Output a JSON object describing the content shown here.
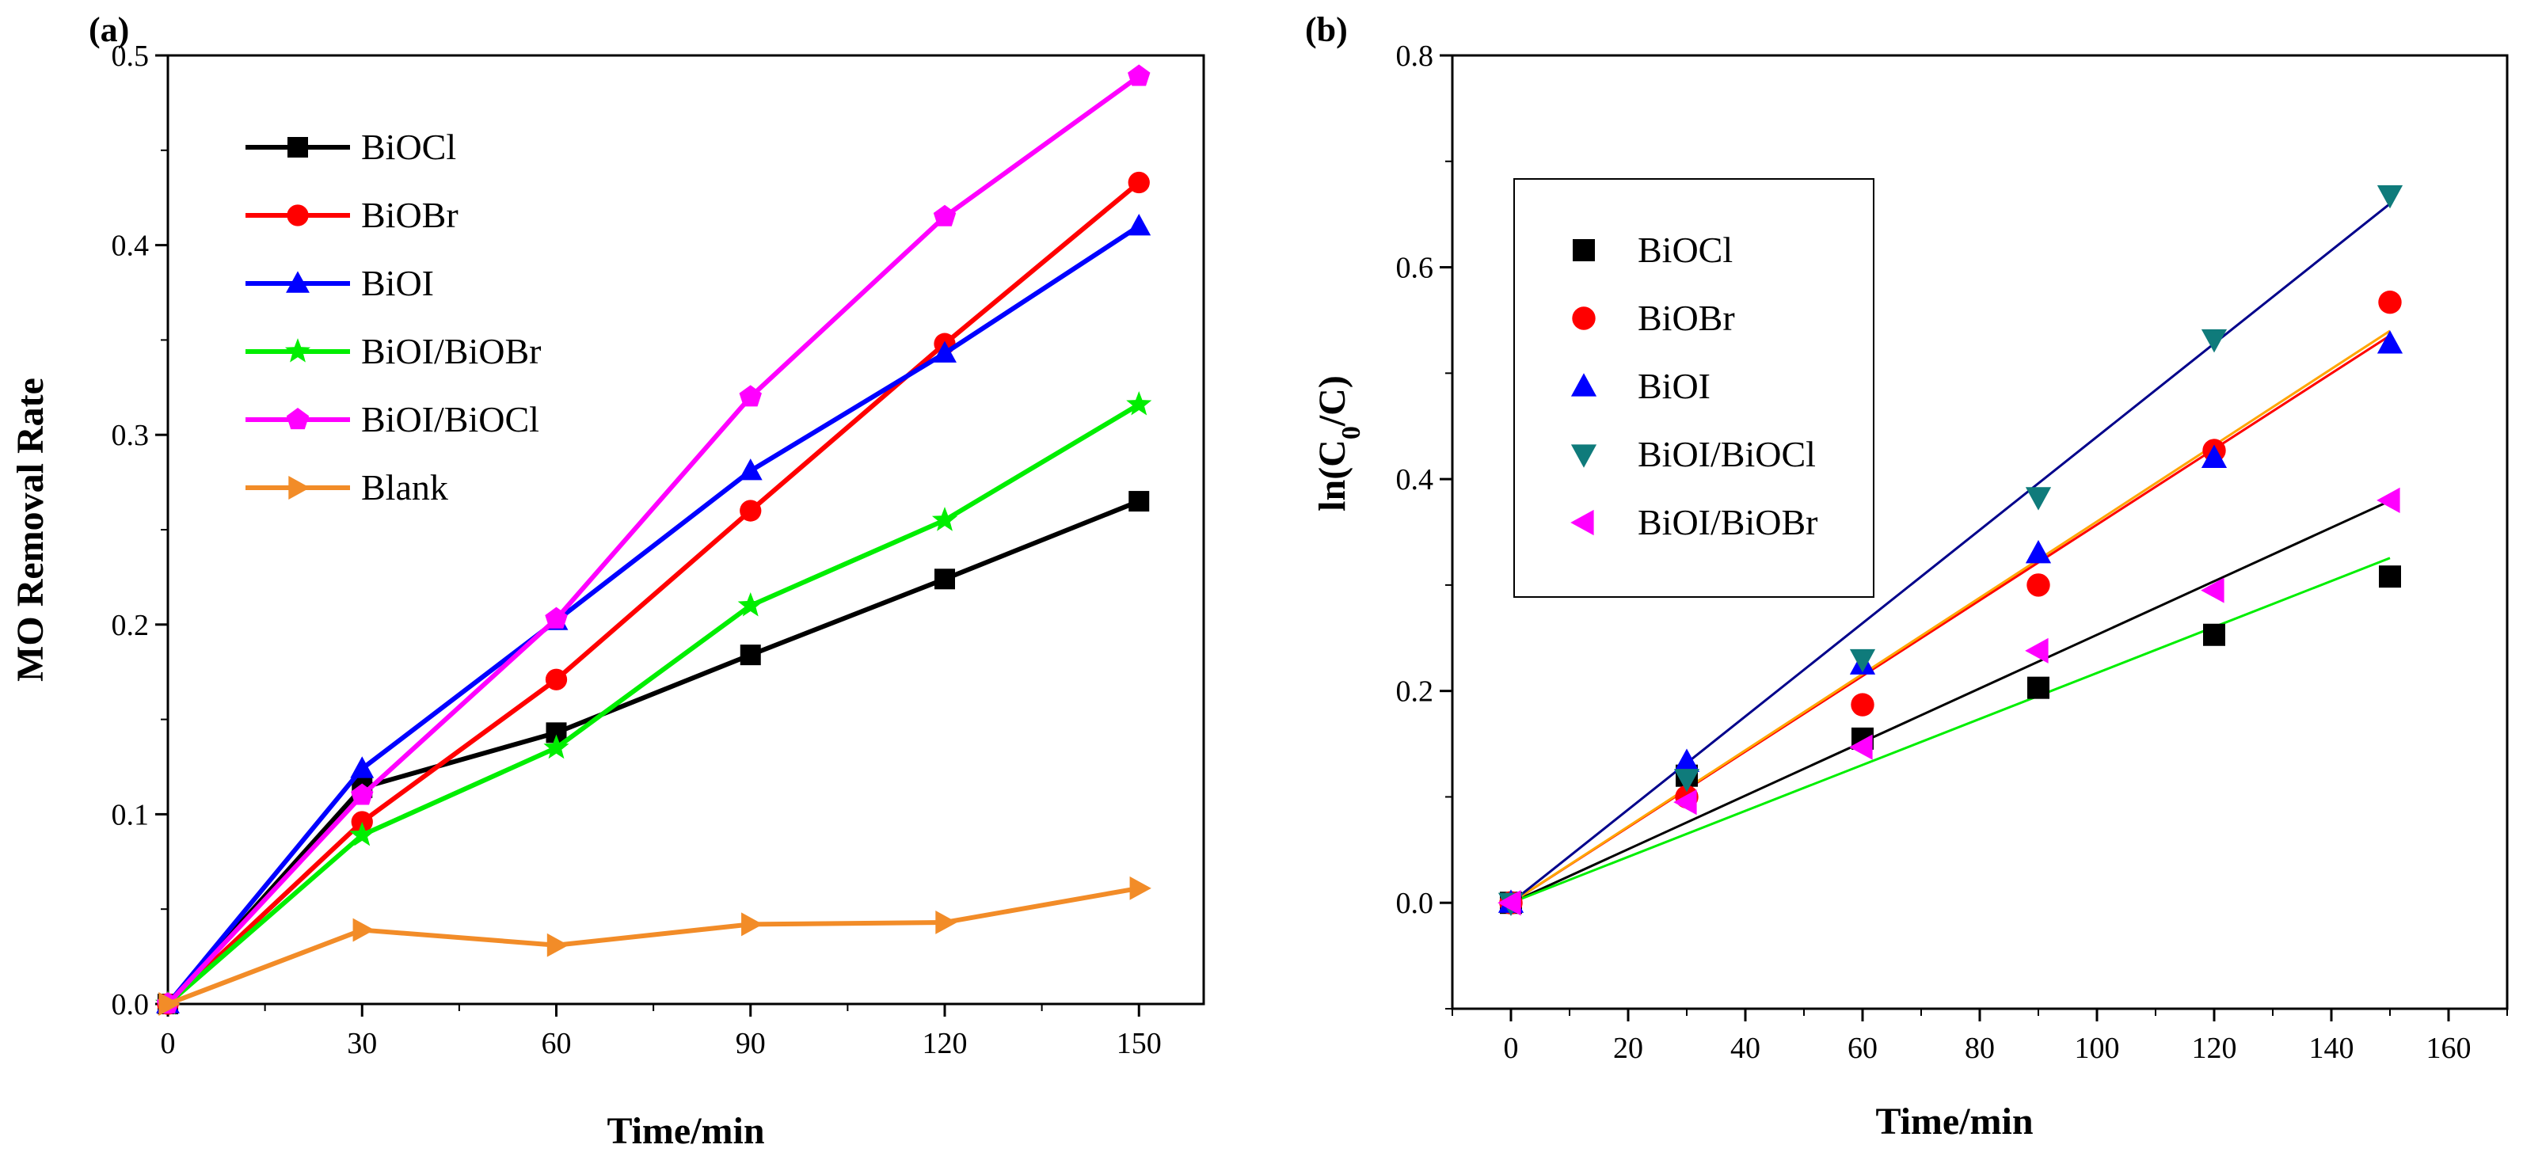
{
  "chart_data": [
    {
      "panel_label": "(a)",
      "type": "line",
      "xlabel": "Time/min",
      "ylabel": "MO Removal Rate",
      "xlim": [
        0,
        160
      ],
      "ylim": [
        0,
        0.5
      ],
      "xticks": [
        "0",
        "30",
        "60",
        "90",
        "120",
        "150"
      ],
      "yticks": [
        "0.0",
        "0.1",
        "0.2",
        "0.3",
        "0.4",
        "0.5"
      ],
      "legend": "top-left",
      "series": [
        {
          "name": "BiOCl",
          "color": "#000000",
          "marker": "square",
          "x": [
            0,
            30,
            60,
            90,
            120,
            150
          ],
          "y": [
            0.0,
            0.114,
            0.143,
            0.184,
            0.224,
            0.265
          ]
        },
        {
          "name": "BiOBr",
          "color": "#ff0000",
          "marker": "circle",
          "x": [
            0,
            30,
            60,
            90,
            120,
            150
          ],
          "y": [
            0.0,
            0.096,
            0.171,
            0.26,
            0.348,
            0.433
          ]
        },
        {
          "name": "BiOI",
          "color": "#0000ff",
          "marker": "triangle-up",
          "x": [
            0,
            30,
            60,
            90,
            120,
            150
          ],
          "y": [
            0.0,
            0.124,
            0.202,
            0.281,
            0.343,
            0.41
          ]
        },
        {
          "name": "BiOI/BiOBr",
          "color": "#00ee00",
          "marker": "star",
          "x": [
            0,
            30,
            60,
            90,
            120,
            150
          ],
          "y": [
            0.0,
            0.089,
            0.135,
            0.21,
            0.255,
            0.316
          ]
        },
        {
          "name": "BiOI/BiOCl",
          "color": "#ff00ff",
          "marker": "pentagon",
          "x": [
            0,
            30,
            60,
            90,
            120,
            150
          ],
          "y": [
            0.0,
            0.11,
            0.203,
            0.32,
            0.415,
            0.489
          ]
        },
        {
          "name": "Blank",
          "color": "#f28c28",
          "marker": "triangle-right",
          "x": [
            0,
            30,
            60,
            90,
            120,
            150
          ],
          "y": [
            0.0,
            0.039,
            0.031,
            0.042,
            0.043,
            0.061
          ]
        }
      ]
    },
    {
      "panel_label": "(b)",
      "type": "scatter",
      "xlabel": "Time/min",
      "ylabel_main": "ln(C",
      "ylabel_sub": "0",
      "ylabel_tail": "/C)",
      "xlim": [
        -10,
        170
      ],
      "ylim": [
        -0.1,
        0.8
      ],
      "xticks": [
        "0",
        "20",
        "40",
        "60",
        "80",
        "100",
        "120",
        "140",
        "160"
      ],
      "yticks": [
        "0.0",
        "0.2",
        "0.4",
        "0.6",
        "0.8"
      ],
      "legend": "top-left, boxed",
      "series": [
        {
          "name": "BiOCl",
          "color": "#000000",
          "marker": "square",
          "x": [
            0,
            30,
            60,
            90,
            120,
            150
          ],
          "y": [
            0.0,
            0.12,
            0.155,
            0.203,
            0.253,
            0.308
          ],
          "fit": {
            "color": "#000000",
            "slope": 0.00253
          }
        },
        {
          "name": "BiOBr",
          "color": "#ff0000",
          "marker": "circle",
          "x": [
            0,
            30,
            60,
            90,
            120,
            150
          ],
          "y": [
            0.0,
            0.1,
            0.187,
            0.3,
            0.427,
            0.567
          ],
          "fit": {
            "color": "#ff0000",
            "slope": 0.00357
          }
        },
        {
          "name": "BiOI",
          "color": "#0000ff",
          "marker": "triangle-up",
          "x": [
            0,
            30,
            60,
            90,
            120,
            150
          ],
          "y": [
            0.0,
            0.133,
            0.225,
            0.33,
            0.42,
            0.528
          ],
          "fit": {
            "color": "#ffa500",
            "slope": 0.0036
          }
        },
        {
          "name": "BiOI/BiOCl",
          "color": "#0f7b7b",
          "marker": "triangle-down",
          "x": [
            0,
            30,
            60,
            90,
            120,
            150
          ],
          "y": [
            0.0,
            0.117,
            0.23,
            0.383,
            0.532,
            0.668
          ],
          "fit": {
            "color": "#00008b",
            "slope": 0.0044
          }
        },
        {
          "name": "BiOI/BiOBr",
          "color": "#ff00ff",
          "marker": "triangle-left",
          "x": [
            0,
            30,
            60,
            90,
            120,
            150
          ],
          "y": [
            0.0,
            0.095,
            0.147,
            0.238,
            0.295,
            0.38
          ],
          "fit": {
            "color": "#00ee00",
            "slope": 0.00217
          }
        }
      ]
    }
  ]
}
